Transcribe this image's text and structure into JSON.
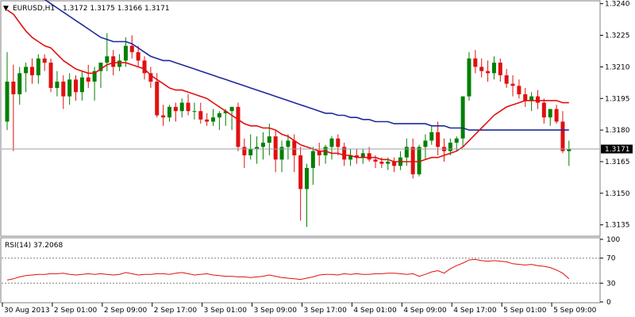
{
  "header": {
    "symbol": "EURUSD,H1",
    "ohlc": "1.3172 1.3175 1.3166 1.3171"
  },
  "indicator": {
    "label": "RSI(14) 37.2068"
  },
  "colors": {
    "bull": "#008000",
    "bear": "#e01010",
    "ma_fast": "#e01010",
    "ma_slow": "#1b2a9b",
    "rsi_line": "#e01010",
    "grid": "#808080"
  },
  "chart_data": {
    "type": "candlestick",
    "price_axis": {
      "ticks": [
        "1.3240",
        "1.3225",
        "1.3210",
        "1.3195",
        "1.3180",
        "1.3165",
        "1.3150",
        "1.3135"
      ],
      "ylim": [
        1.313,
        1.3241
      ]
    },
    "current_price": "1.3171",
    "time_axis": {
      "ticks": [
        "30 Aug 2013",
        "2 Sep 01:00",
        "2 Sep 09:00",
        "2 Sep 17:00",
        "3 Sep 01:00",
        "3 Sep 09:00",
        "3 Sep 17:00",
        "4 Sep 01:00",
        "4 Sep 09:00",
        "4 Sep 17:00",
        "5 Sep 01:00",
        "5 Sep 09:00"
      ],
      "tick_bar_index": [
        0,
        8,
        16,
        24,
        32,
        40,
        48,
        56,
        64,
        72,
        80,
        88
      ]
    },
    "candles": [
      [
        1.3184,
        1.3217,
        1.318,
        1.3203
      ],
      [
        1.3203,
        1.3211,
        1.317,
        1.3197
      ],
      [
        1.3197,
        1.321,
        1.3192,
        1.3207
      ],
      [
        1.3207,
        1.3212,
        1.3198,
        1.321
      ],
      [
        1.321,
        1.3214,
        1.3202,
        1.3206
      ],
      [
        1.3206,
        1.3216,
        1.3202,
        1.3214
      ],
      [
        1.3214,
        1.3216,
        1.3208,
        1.3212
      ],
      [
        1.3212,
        1.3214,
        1.3198,
        1.32
      ],
      [
        1.32,
        1.3208,
        1.3196,
        1.3203
      ],
      [
        1.3203,
        1.3206,
        1.319,
        1.3196
      ],
      [
        1.3196,
        1.3207,
        1.3192,
        1.3204
      ],
      [
        1.3204,
        1.3206,
        1.3194,
        1.3198
      ],
      [
        1.3198,
        1.3208,
        1.3194,
        1.3205
      ],
      [
        1.3205,
        1.3211,
        1.32,
        1.3203
      ],
      [
        1.3203,
        1.321,
        1.3194,
        1.3208
      ],
      [
        1.3208,
        1.3212,
        1.32,
        1.3212
      ],
      [
        1.3212,
        1.3226,
        1.3208,
        1.3215
      ],
      [
        1.3215,
        1.3218,
        1.3206,
        1.321
      ],
      [
        1.321,
        1.3216,
        1.3208,
        1.3213
      ],
      [
        1.3213,
        1.3224,
        1.321,
        1.322
      ],
      [
        1.322,
        1.3225,
        1.3214,
        1.3217
      ],
      [
        1.3217,
        1.322,
        1.321,
        1.3213
      ],
      [
        1.3213,
        1.3215,
        1.3204,
        1.3207
      ],
      [
        1.3207,
        1.321,
        1.32,
        1.3203
      ],
      [
        1.3203,
        1.3207,
        1.3186,
        1.3187
      ],
      [
        1.3187,
        1.3192,
        1.3182,
        1.3186
      ],
      [
        1.3186,
        1.3192,
        1.3184,
        1.3191
      ],
      [
        1.3191,
        1.3193,
        1.3184,
        1.3189
      ],
      [
        1.3189,
        1.3195,
        1.3186,
        1.3193
      ],
      [
        1.3193,
        1.3197,
        1.3187,
        1.3189
      ],
      [
        1.3189,
        1.3193,
        1.3185,
        1.3189
      ],
      [
        1.3189,
        1.3193,
        1.3183,
        1.3185
      ],
      [
        1.3185,
        1.3188,
        1.3182,
        1.3184
      ],
      [
        1.3184,
        1.319,
        1.3182,
        1.3186
      ],
      [
        1.3186,
        1.3189,
        1.318,
        1.3188
      ],
      [
        1.3188,
        1.319,
        1.3182,
        1.3189
      ],
      [
        1.3189,
        1.3191,
        1.318,
        1.3191
      ],
      [
        1.3191,
        1.3193,
        1.317,
        1.3172
      ],
      [
        1.3172,
        1.3176,
        1.3162,
        1.3168
      ],
      [
        1.3168,
        1.3178,
        1.3166,
        1.3171
      ],
      [
        1.3171,
        1.3177,
        1.3164,
        1.3172
      ],
      [
        1.3172,
        1.3179,
        1.3166,
        1.3174
      ],
      [
        1.3174,
        1.3183,
        1.3168,
        1.3177
      ],
      [
        1.3177,
        1.318,
        1.316,
        1.3166
      ],
      [
        1.3166,
        1.3175,
        1.316,
        1.3172
      ],
      [
        1.3172,
        1.3178,
        1.3166,
        1.3175
      ],
      [
        1.3175,
        1.3178,
        1.316,
        1.3168
      ],
      [
        1.3168,
        1.3172,
        1.3137,
        1.3152
      ],
      [
        1.3152,
        1.3164,
        1.3134,
        1.3162
      ],
      [
        1.3162,
        1.3172,
        1.3154,
        1.317
      ],
      [
        1.317,
        1.3174,
        1.3163,
        1.3168
      ],
      [
        1.3168,
        1.3173,
        1.3164,
        1.3172
      ],
      [
        1.3172,
        1.3177,
        1.3166,
        1.3176
      ],
      [
        1.3176,
        1.3178,
        1.3168,
        1.3172
      ],
      [
        1.3172,
        1.3174,
        1.3163,
        1.3166
      ],
      [
        1.3166,
        1.3171,
        1.3163,
        1.3168
      ],
      [
        1.3168,
        1.3171,
        1.3164,
        1.3167
      ],
      [
        1.3167,
        1.3171,
        1.3164,
        1.3169
      ],
      [
        1.3169,
        1.3172,
        1.3165,
        1.3166
      ],
      [
        1.3166,
        1.3168,
        1.3162,
        1.3165
      ],
      [
        1.3165,
        1.3167,
        1.3162,
        1.3164
      ],
      [
        1.3164,
        1.3167,
        1.3161,
        1.3165
      ],
      [
        1.3165,
        1.3167,
        1.316,
        1.3163
      ],
      [
        1.3163,
        1.317,
        1.3161,
        1.3167
      ],
      [
        1.3167,
        1.3176,
        1.3163,
        1.3172
      ],
      [
        1.3172,
        1.3176,
        1.3157,
        1.3159
      ],
      [
        1.3159,
        1.3173,
        1.3158,
        1.3172
      ],
      [
        1.3172,
        1.3178,
        1.3166,
        1.3175
      ],
      [
        1.3175,
        1.3182,
        1.3173,
        1.3179
      ],
      [
        1.3179,
        1.3184,
        1.3168,
        1.3172
      ],
      [
        1.3172,
        1.3176,
        1.3165,
        1.317
      ],
      [
        1.317,
        1.3176,
        1.3168,
        1.3174
      ],
      [
        1.3174,
        1.3177,
        1.317,
        1.3176
      ],
      [
        1.3176,
        1.3196,
        1.3172,
        1.3196
      ],
      [
        1.3196,
        1.3217,
        1.3194,
        1.3214
      ],
      [
        1.3214,
        1.3218,
        1.3207,
        1.321
      ],
      [
        1.321,
        1.3214,
        1.3205,
        1.3208
      ],
      [
        1.3208,
        1.3213,
        1.3203,
        1.3207
      ],
      [
        1.3207,
        1.3215,
        1.3204,
        1.3212
      ],
      [
        1.3212,
        1.3214,
        1.3203,
        1.3206
      ],
      [
        1.3206,
        1.3209,
        1.32,
        1.3202
      ],
      [
        1.3202,
        1.3206,
        1.3196,
        1.3201
      ],
      [
        1.3201,
        1.3204,
        1.3195,
        1.3197
      ],
      [
        1.3197,
        1.32,
        1.3191,
        1.3194
      ],
      [
        1.3194,
        1.3198,
        1.3189,
        1.3196
      ],
      [
        1.3196,
        1.3199,
        1.319,
        1.3193
      ],
      [
        1.3193,
        1.3195,
        1.3183,
        1.3186
      ],
      [
        1.3186,
        1.319,
        1.3182,
        1.319
      ],
      [
        1.319,
        1.3192,
        1.3183,
        1.3184
      ],
      [
        1.3184,
        1.3189,
        1.3169,
        1.317
      ],
      [
        1.317,
        1.3175,
        1.3163,
        1.3171
      ]
    ],
    "ma_fast": [
      1.3237,
      1.3235,
      1.3231,
      1.3227,
      1.3224,
      1.3222,
      1.322,
      1.3219,
      1.3216,
      1.3213,
      1.3211,
      1.3209,
      1.3208,
      1.3207,
      1.3207,
      1.3209,
      1.3211,
      1.3212,
      1.3212,
      1.3212,
      1.3211,
      1.321,
      1.3209,
      1.3206,
      1.3204,
      1.3202,
      1.32,
      1.3199,
      1.3199,
      1.3198,
      1.3197,
      1.3196,
      1.3195,
      1.3193,
      1.3191,
      1.3189,
      1.3187,
      1.3185,
      1.3183,
      1.3182,
      1.3182,
      1.3181,
      1.3181,
      1.318,
      1.3178,
      1.3177,
      1.3175,
      1.3173,
      1.3172,
      1.3171,
      1.317,
      1.317,
      1.3169,
      1.3169,
      1.3168,
      1.3168,
      1.3167,
      1.3167,
      1.3167,
      1.3167,
      1.3166,
      1.3166,
      1.3165,
      1.3165,
      1.3165,
      1.3165,
      1.3165,
      1.3166,
      1.3167,
      1.3167,
      1.3168,
      1.3169,
      1.317,
      1.3172,
      1.3175,
      1.3178,
      1.3181,
      1.3184,
      1.3187,
      1.3189,
      1.3191,
      1.3192,
      1.3193,
      1.3194,
      1.3194,
      1.3194,
      1.3194,
      1.3194,
      1.3194,
      1.3193,
      1.3193
    ],
    "ma_slow": [
      1.3254,
      1.3252,
      1.325,
      1.3248,
      1.3246,
      1.3244,
      1.3242,
      1.324,
      1.3238,
      1.3236,
      1.3234,
      1.3232,
      1.323,
      1.3228,
      1.3226,
      1.3224,
      1.3223,
      1.3222,
      1.3222,
      1.3222,
      1.3221,
      1.3219,
      1.3217,
      1.3215,
      1.3214,
      1.3213,
      1.3213,
      1.3212,
      1.3211,
      1.321,
      1.3209,
      1.3208,
      1.3207,
      1.3206,
      1.3205,
      1.3204,
      1.3203,
      1.3202,
      1.3201,
      1.32,
      1.3199,
      1.3198,
      1.3197,
      1.3196,
      1.3195,
      1.3194,
      1.3193,
      1.3192,
      1.3191,
      1.319,
      1.3189,
      1.3188,
      1.3188,
      1.3187,
      1.3187,
      1.3186,
      1.3186,
      1.3185,
      1.3185,
      1.3184,
      1.3184,
      1.3184,
      1.3183,
      1.3183,
      1.3183,
      1.3183,
      1.3183,
      1.3183,
      1.3182,
      1.3182,
      1.3182,
      1.3181,
      1.3181,
      1.3181,
      1.318,
      1.318,
      1.318,
      1.318,
      1.318,
      1.318,
      1.318,
      1.318,
      1.318,
      1.318,
      1.318,
      1.318,
      1.318,
      1.318,
      1.318,
      1.318,
      1.318
    ],
    "rsi": {
      "levels": [
        "100",
        "70",
        "30",
        "0"
      ],
      "ylim": [
        0,
        100
      ],
      "guides": [
        70,
        30
      ],
      "values": [
        35,
        37,
        40,
        42,
        43,
        44,
        44,
        45,
        45,
        46,
        44,
        43,
        44,
        45,
        44,
        45,
        44,
        43,
        44,
        47,
        45,
        43,
        44,
        44,
        45,
        45,
        44,
        46,
        47,
        45,
        43,
        44,
        45,
        43,
        42,
        41,
        41,
        40,
        40,
        39,
        40,
        41,
        43,
        41,
        39,
        38,
        37,
        36,
        38,
        40,
        43,
        44,
        44,
        43,
        45,
        44,
        45,
        44,
        44,
        45,
        45,
        46,
        46,
        45,
        44,
        45,
        41,
        44,
        48,
        50,
        46,
        53,
        58,
        62,
        67,
        68,
        66,
        65,
        66,
        65,
        64,
        61,
        60,
        59,
        60,
        58,
        57,
        55,
        51,
        46,
        37
      ]
    }
  }
}
